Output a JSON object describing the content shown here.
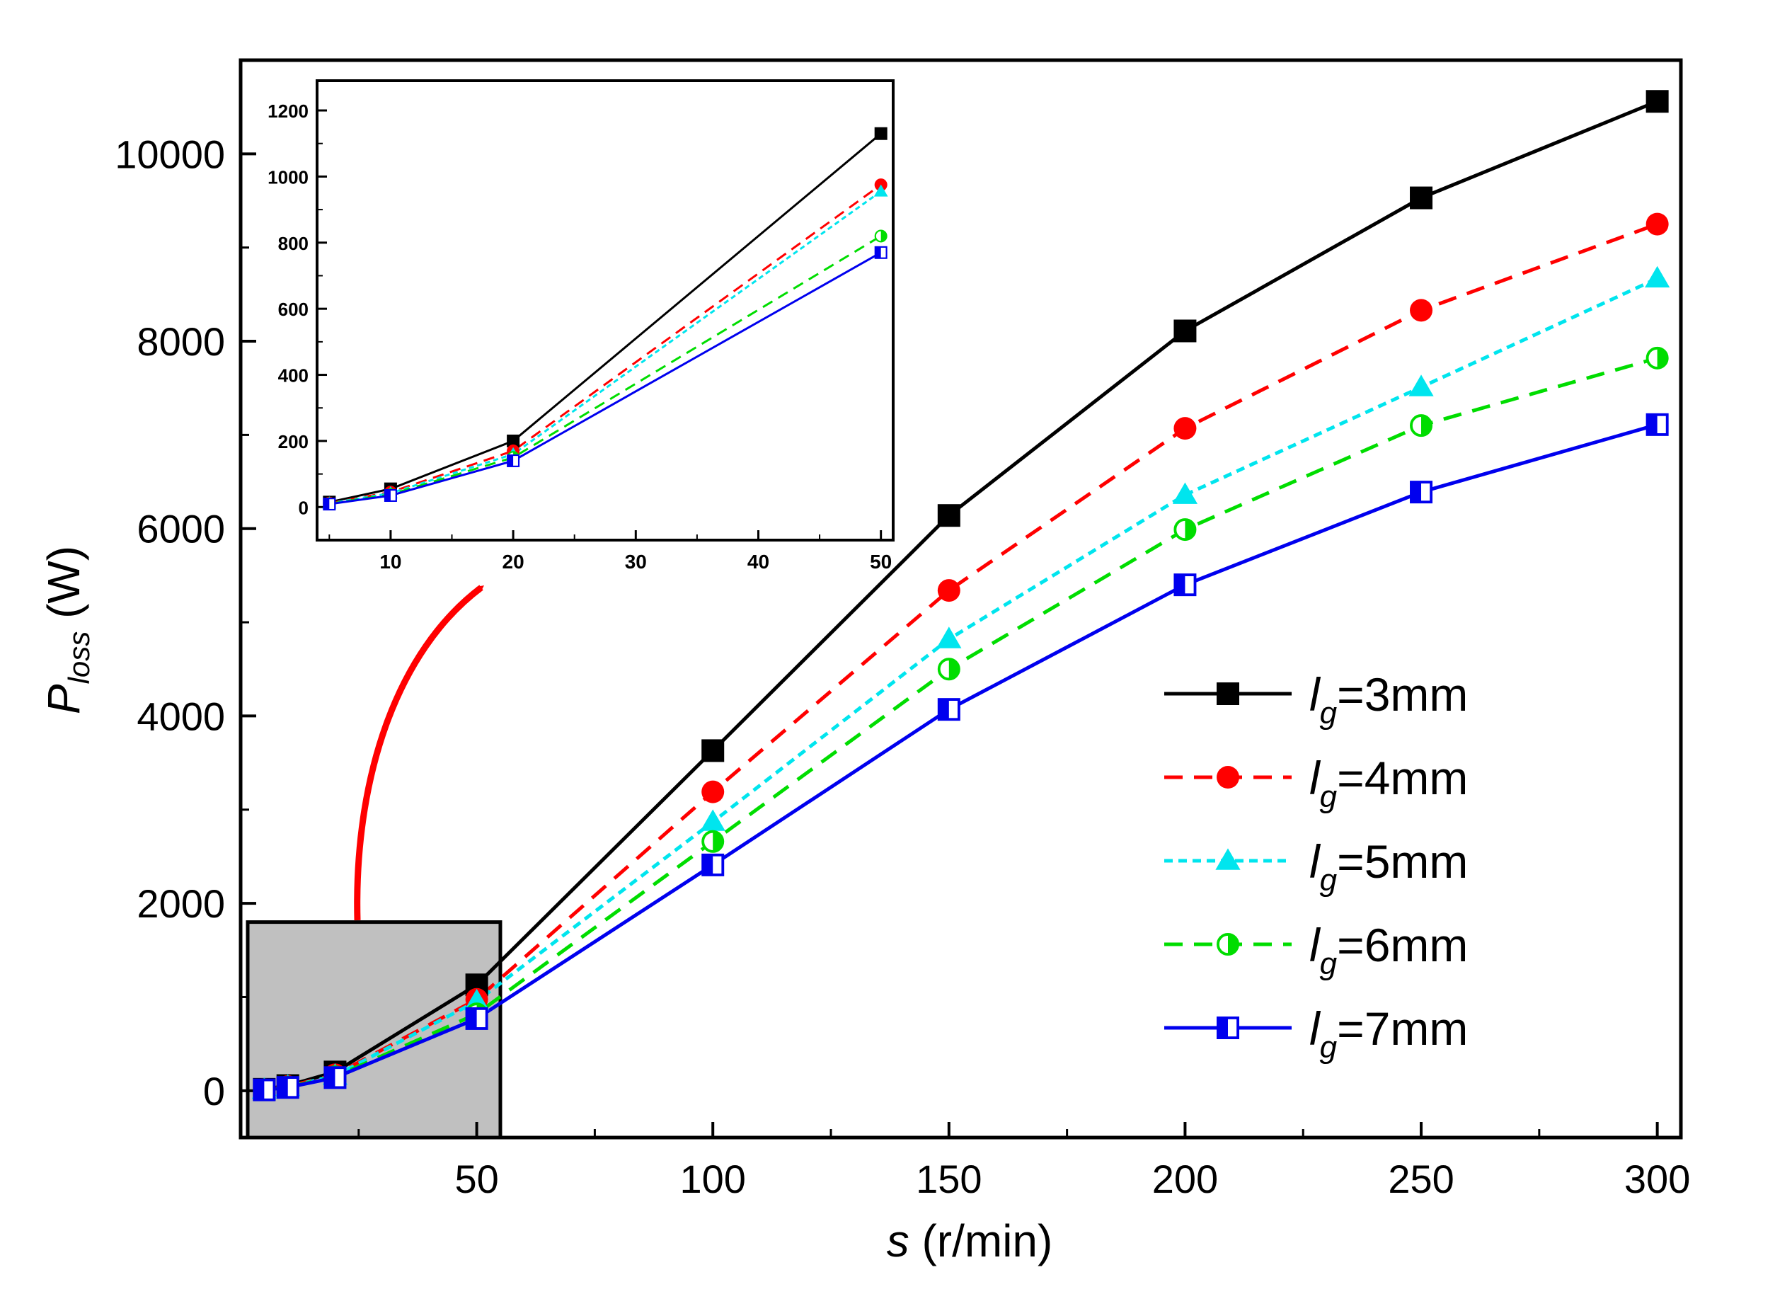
{
  "chart_data": {
    "type": "line",
    "title": "",
    "xlabel": "s (r/min)",
    "xlabel_italic": "s",
    "xlabel_rest": " (r/min)",
    "ylabel": "P_loss (W)",
    "ylabel_main": "P",
    "ylabel_sub": "loss",
    "ylabel_rest": " (W)",
    "xlim": [
      0,
      305
    ],
    "ylim": [
      -500,
      11000
    ],
    "xticks": [
      50,
      100,
      150,
      200,
      250,
      300
    ],
    "xtick_labels": [
      "50",
      "100",
      "150",
      "200",
      "250",
      "300"
    ],
    "yticks": [
      0,
      2000,
      4000,
      6000,
      8000,
      10000
    ],
    "ytick_labels": [
      "0",
      "2000",
      "4000",
      "6000",
      "8000",
      "10000"
    ],
    "x": [
      5,
      10,
      20,
      50,
      100,
      150,
      200,
      250,
      300
    ],
    "series": [
      {
        "name": "lg=3mm",
        "label_var": "l",
        "label_sub": "g",
        "label_value": "=3mm",
        "color": "#000000",
        "dash": "solid",
        "marker": "square-filled",
        "values": [
          15,
          55,
          200,
          1130,
          3630,
          6140,
          8110,
          9530,
          10560
        ]
      },
      {
        "name": "lg=4mm",
        "label_var": "l",
        "label_sub": "g",
        "label_value": "=4mm",
        "color": "#ff0000",
        "dash": "dashed",
        "marker": "circle-filled",
        "values": [
          12,
          45,
          170,
          975,
          3190,
          5340,
          7070,
          8330,
          9250
        ]
      },
      {
        "name": "lg=5mm",
        "label_var": "l",
        "label_sub": "g",
        "label_value": "=5mm",
        "color": "#00e5ee",
        "dash": "dotted",
        "marker": "triangle-filled",
        "values": [
          11,
          42,
          160,
          955,
          2870,
          4820,
          6360,
          7510,
          8670
        ]
      },
      {
        "name": "lg=6mm",
        "label_var": "l",
        "label_sub": "g",
        "label_value": "=6mm",
        "color": "#00dd00",
        "dash": "dashed",
        "marker": "circle-half",
        "values": [
          10,
          38,
          150,
          820,
          2660,
          4500,
          5990,
          7100,
          7820
        ]
      },
      {
        "name": "lg=7mm",
        "label_var": "l",
        "label_sub": "g",
        "label_value": "=7mm",
        "color": "#0000ee",
        "dash": "solid",
        "marker": "square-half",
        "values": [
          9,
          35,
          140,
          770,
          2410,
          4070,
          5400,
          6390,
          7110
        ]
      }
    ],
    "legend_position": "right-center",
    "inset": {
      "xlim": [
        4,
        51
      ],
      "ylim": [
        -100,
        1290
      ],
      "xticks": [
        10,
        20,
        30,
        40,
        50
      ],
      "xtick_labels": [
        "10",
        "20",
        "30",
        "40",
        "50"
      ],
      "yticks": [
        0,
        200,
        400,
        600,
        800,
        1000,
        1200
      ],
      "ytick_labels": [
        "0",
        "200",
        "400",
        "600",
        "800",
        "1000",
        "1200"
      ],
      "x": [
        5,
        10,
        20,
        50
      ]
    },
    "zoom_region": {
      "x_range": [
        0,
        55
      ],
      "y_range": [
        -500,
        1800
      ],
      "fill": "#c0c0c0"
    },
    "arrow_color": "#ff0000"
  }
}
